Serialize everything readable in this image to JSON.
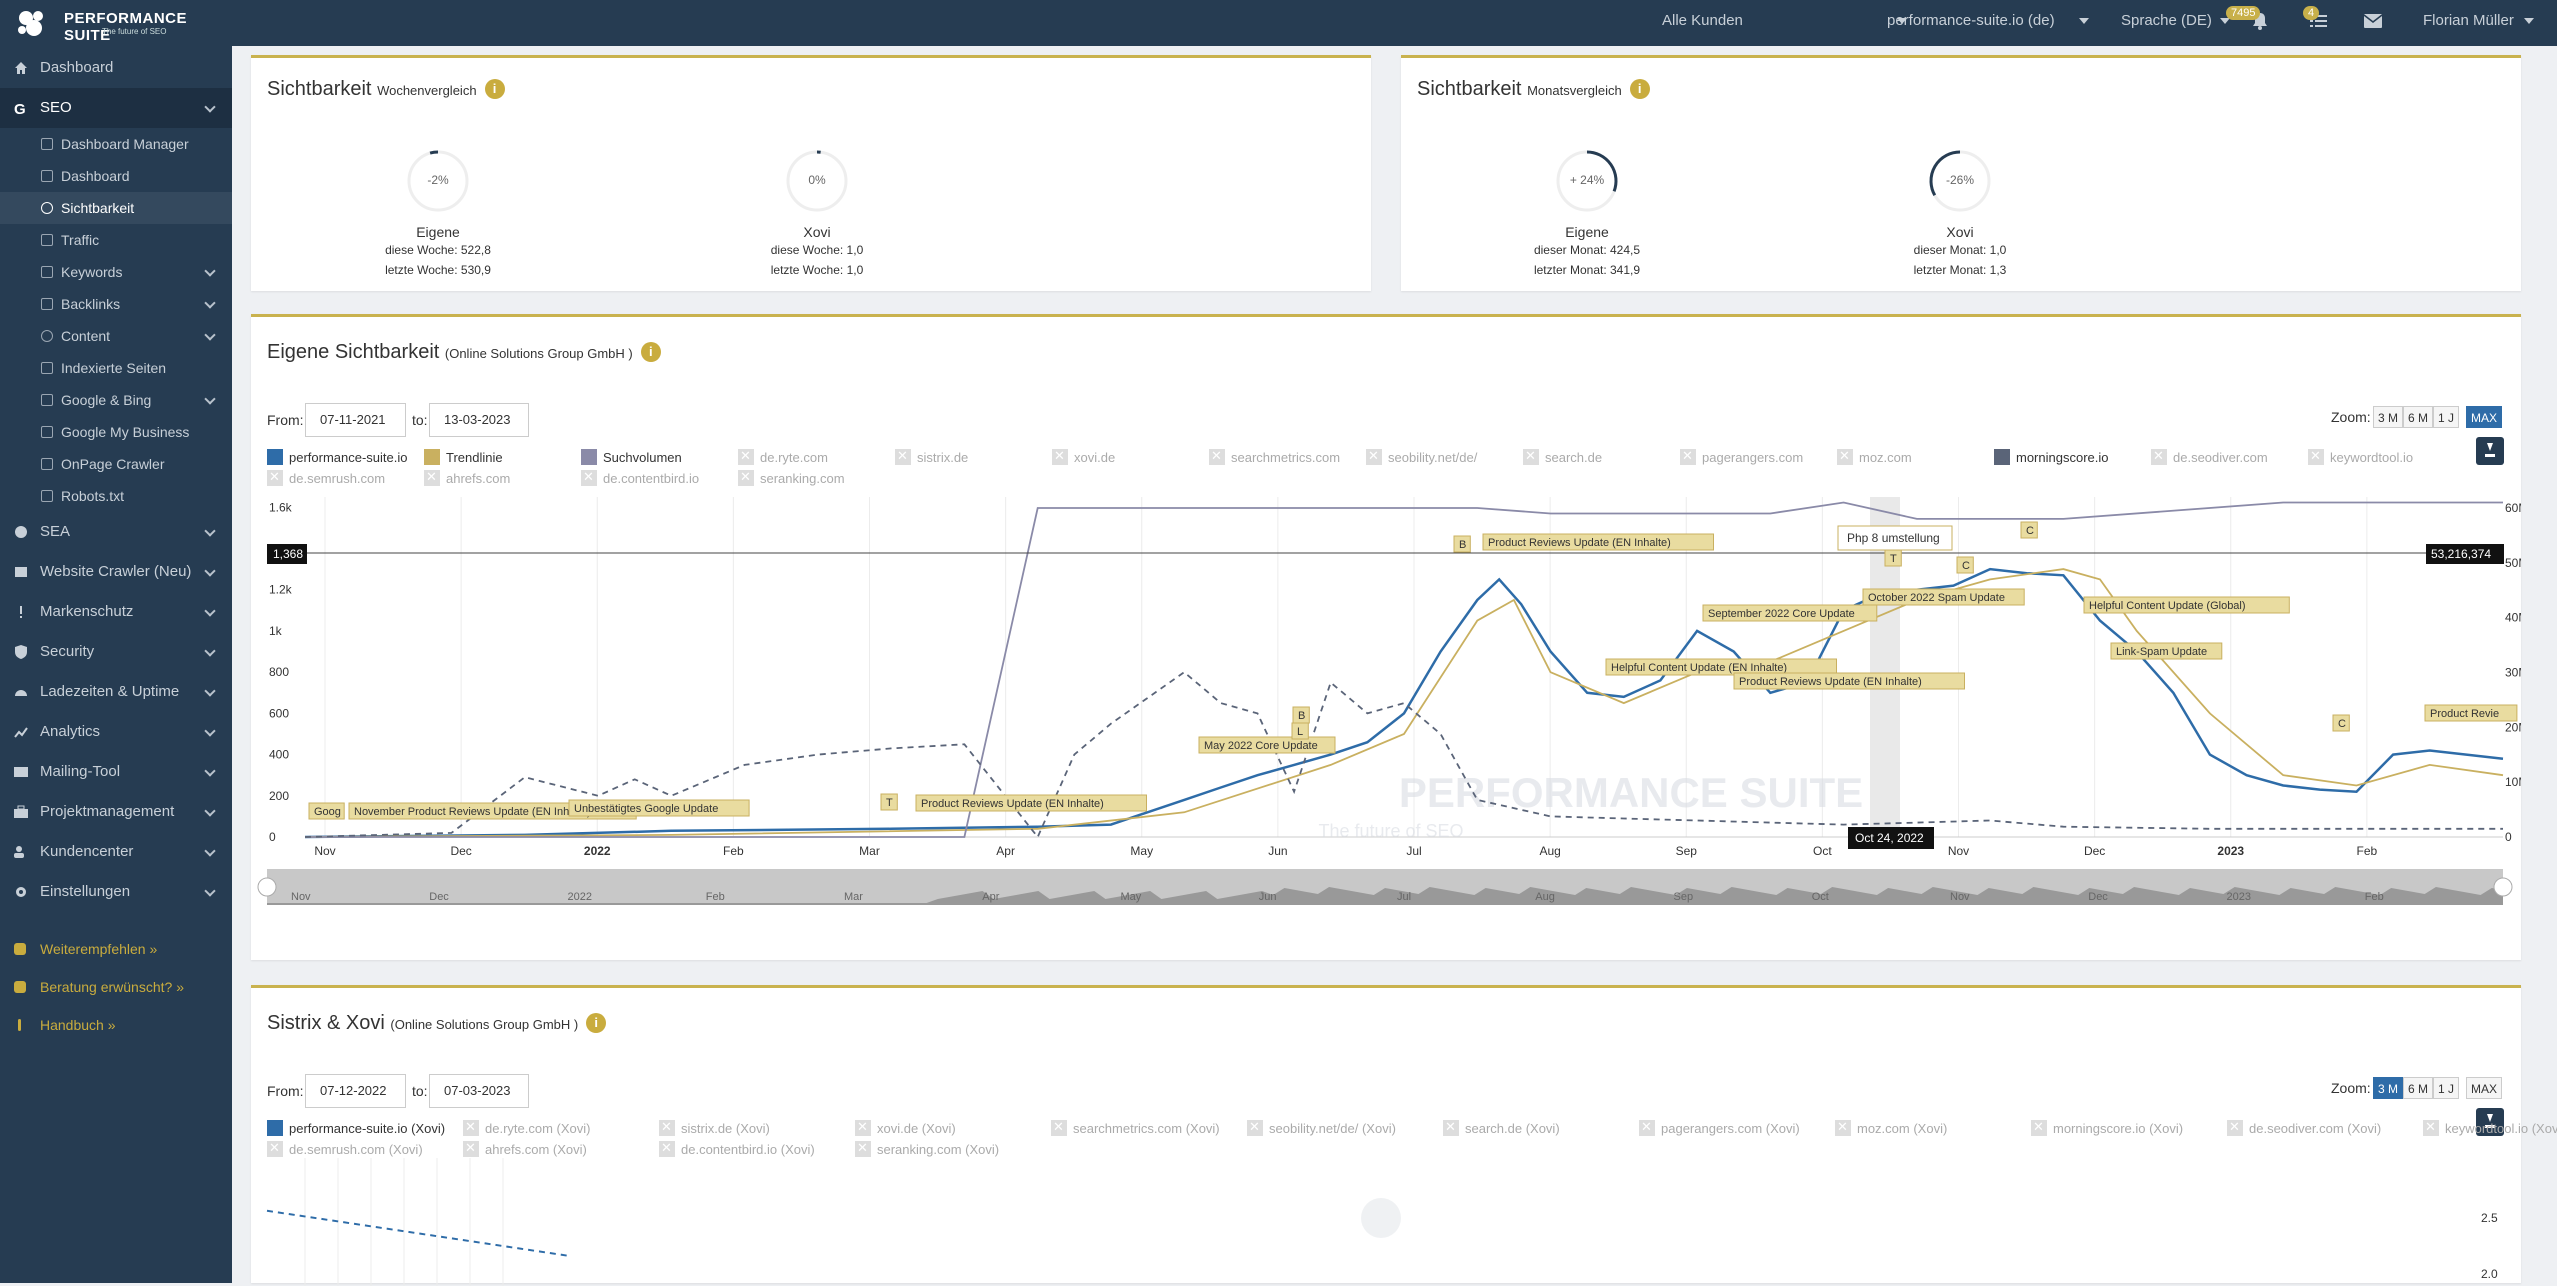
{
  "app": {
    "title": "PERFORMANCE SUITE",
    "tagline": "The future of SEO"
  },
  "topbar": {
    "customer_select": "Alle Kunden",
    "domain_select": "performance-suite.io (de)",
    "language_select": "Sprache (DE)",
    "notif_badge": "7495",
    "task_badge": "4",
    "user": "Florian Müller"
  },
  "sidebar": {
    "items": [
      {
        "label": "Dashboard"
      },
      {
        "label": "SEO"
      },
      {
        "label": "SEA"
      },
      {
        "label": "Website Crawler (Neu)"
      },
      {
        "label": "Markenschutz"
      },
      {
        "label": "Security"
      },
      {
        "label": "Ladezeiten & Uptime"
      },
      {
        "label": "Analytics"
      },
      {
        "label": "Mailing-Tool"
      },
      {
        "label": "Projektmanagement"
      },
      {
        "label": "Kundencenter"
      },
      {
        "label": "Einstellungen"
      }
    ],
    "seo_sub": [
      {
        "label": "Dashboard Manager"
      },
      {
        "label": "Dashboard"
      },
      {
        "label": "Sichtbarkeit"
      },
      {
        "label": "Traffic"
      },
      {
        "label": "Keywords"
      },
      {
        "label": "Backlinks"
      },
      {
        "label": "Content"
      },
      {
        "label": "Indexierte Seiten"
      },
      {
        "label": "Google & Bing"
      },
      {
        "label": "Google My Business"
      },
      {
        "label": "OnPage Crawler"
      },
      {
        "label": "Robots.txt"
      }
    ],
    "footer": [
      {
        "label": "Weiterempfehlen »"
      },
      {
        "label": "Beratung erwünscht? »"
      },
      {
        "label": "Handbuch »"
      }
    ]
  },
  "week_card": {
    "title": "Sichtbarkeit",
    "subtitle": "Wochenvergleich",
    "gauges": [
      {
        "pct": "-2%",
        "value": -2,
        "name": "Eigene",
        "line1": "diese Woche: 522,8",
        "line2": "letzte Woche: 530,9"
      },
      {
        "pct": "0%",
        "value": 0,
        "name": "Xovi",
        "line1": "diese Woche: 1,0",
        "line2": "letzte Woche: 1,0"
      }
    ]
  },
  "month_card": {
    "title": "Sichtbarkeit",
    "subtitle": "Monatsvergleich",
    "gauges": [
      {
        "pct": "+ 24%",
        "value": 24,
        "name": "Eigene",
        "line1": "dieser Monat: 424,5",
        "line2": "letzter Monat: 341,9"
      },
      {
        "pct": "-26%",
        "value": -26,
        "name": "Xovi",
        "line1": "dieser Monat: 1,0",
        "line2": "letzter Monat: 1,3"
      }
    ]
  },
  "chart1": {
    "title": "Eigene Sichtbarkeit",
    "subtitle": "(Online Solutions Group GmbH )",
    "from_label": "From:",
    "from": "07-11-2021",
    "to_label": "to:",
    "to": "13-03-2023",
    "zoom_label": "Zoom:",
    "zoom": [
      "3 M",
      "6 M",
      "1 J",
      "MAX"
    ],
    "zoom_active": "MAX",
    "legend": [
      {
        "label": "performance-suite.io",
        "color": "#2e6ca8",
        "on": true
      },
      {
        "label": "Trendlinie",
        "color": "#c9b060",
        "on": true
      },
      {
        "label": "Suchvolumen",
        "color": "#8a8aa8",
        "on": true
      },
      {
        "label": "de.ryte.com",
        "on": false
      },
      {
        "label": "sistrix.de",
        "on": false
      },
      {
        "label": "xovi.de",
        "on": false
      },
      {
        "label": "searchmetrics.com",
        "on": false
      },
      {
        "label": "seobility.net/de/",
        "on": false
      },
      {
        "label": "search.de",
        "on": false
      },
      {
        "label": "pagerangers.com",
        "on": false
      },
      {
        "label": "moz.com",
        "on": false
      },
      {
        "label": "morningscore.io",
        "color": "#5a6478",
        "on": true
      },
      {
        "label": "de.seodiver.com",
        "on": false
      },
      {
        "label": "keywordtool.io",
        "on": false
      },
      {
        "label": "de.semrush.com",
        "on": false
      },
      {
        "label": "ahrefs.com",
        "on": false
      },
      {
        "label": "de.contentbird.io",
        "on": false
      },
      {
        "label": "seranking.com",
        "on": false
      }
    ],
    "crosshair_left": "1,368",
    "crosshair_right": "53,216,374",
    "crosshair_date": "Oct 24, 2022",
    "tooltip": "Php 8 umstellung",
    "watermark": "PERFORMANCE SUITE",
    "watermark_sub": "The future of SEO",
    "navigator_labels": [
      "Nov",
      "Dec",
      "2022",
      "Feb",
      "Mar",
      "Apr",
      "May",
      "Jun",
      "Jul",
      "Aug",
      "Sep",
      "Oct",
      "Nov",
      "Dec",
      "2023",
      "Feb"
    ]
  },
  "chart_data": [
    {
      "type": "line",
      "title": "Eigene Sichtbarkeit",
      "x_ticks": [
        "Nov",
        "Dec",
        "2022",
        "Feb",
        "Mar",
        "Apr",
        "May",
        "Jun",
        "Jul",
        "Aug",
        "Sep",
        "Oct",
        "Nov",
        "Dec",
        "2023",
        "Feb"
      ],
      "y_left_ticks": [
        "0",
        "200",
        "400",
        "600",
        "800",
        "1k",
        "1.2k",
        "1.4k",
        "1.6k"
      ],
      "y_right_ticks": [
        "0",
        "10M",
        "20M",
        "30M",
        "40M",
        "50M",
        "60M"
      ],
      "ylim_left": [
        0,
        1650
      ],
      "ylim_right": [
        0,
        62000000
      ],
      "series": [
        {
          "name": "performance-suite.io",
          "color": "#2e6ca8",
          "axis": "left",
          "points": [
            [
              0,
              0
            ],
            [
              3,
              10
            ],
            [
              5,
              30
            ],
            [
              8,
              40
            ],
            [
              10,
              50
            ],
            [
              11,
              60
            ],
            [
              12,
              180
            ],
            [
              12.5,
              240
            ],
            [
              13,
              300
            ],
            [
              13.5,
              350
            ],
            [
              14,
              400
            ],
            [
              14.5,
              460
            ],
            [
              15,
              600
            ],
            [
              15.5,
              900
            ],
            [
              16,
              1150
            ],
            [
              16.3,
              1250
            ],
            [
              16.6,
              1130
            ],
            [
              17,
              900
            ],
            [
              17.5,
              700
            ],
            [
              18,
              680
            ],
            [
              18.5,
              760
            ],
            [
              19,
              1000
            ],
            [
              19.5,
              900
            ],
            [
              20,
              700
            ],
            [
              20.5,
              750
            ],
            [
              21,
              1100
            ],
            [
              21.5,
              1180
            ],
            [
              22,
              1200
            ],
            [
              22.5,
              1220
            ],
            [
              23,
              1300
            ],
            [
              23.5,
              1280
            ],
            [
              24,
              1270
            ],
            [
              24.5,
              1050
            ],
            [
              25,
              900
            ],
            [
              25.5,
              700
            ],
            [
              26,
              400
            ],
            [
              26.5,
              300
            ],
            [
              27,
              250
            ],
            [
              27.5,
              230
            ],
            [
              28,
              220
            ],
            [
              28.5,
              400
            ],
            [
              29,
              420
            ],
            [
              30,
              380
            ]
          ]
        },
        {
          "name": "Trendlinie",
          "color": "#c9b060",
          "axis": "left",
          "points": [
            [
              0,
              0
            ],
            [
              5,
              10
            ],
            [
              10,
              40
            ],
            [
              12,
              120
            ],
            [
              14,
              350
            ],
            [
              15,
              500
            ],
            [
              16,
              1050
            ],
            [
              16.5,
              1150
            ],
            [
              17,
              800
            ],
            [
              18,
              650
            ],
            [
              19,
              800
            ],
            [
              20,
              850
            ],
            [
              21,
              1000
            ],
            [
              22,
              1150
            ],
            [
              23,
              1250
            ],
            [
              24,
              1300
            ],
            [
              24.5,
              1250
            ],
            [
              25,
              1000
            ],
            [
              26,
              600
            ],
            [
              27,
              300
            ],
            [
              28,
              250
            ],
            [
              29,
              350
            ],
            [
              30,
              300
            ]
          ]
        },
        {
          "name": "Suchvolumen",
          "color": "#8a8aa8",
          "axis": "right",
          "points": [
            [
              0,
              0
            ],
            [
              9,
              0
            ],
            [
              10,
              60000000
            ],
            [
              16,
              60000000
            ],
            [
              17,
              59000000
            ],
            [
              20,
              59000000
            ],
            [
              21,
              61000000
            ],
            [
              22,
              58000000
            ],
            [
              24,
              58000000
            ],
            [
              27,
              61000000
            ],
            [
              30,
              61000000
            ]
          ]
        },
        {
          "name": "morningscore.io",
          "color": "#5a6478",
          "axis": "left",
          "dashed": true,
          "points": [
            [
              0,
              0
            ],
            [
              2,
              20
            ],
            [
              3,
              290
            ],
            [
              4,
              200
            ],
            [
              4.5,
              280
            ],
            [
              5,
              200
            ],
            [
              6,
              350
            ],
            [
              7,
              400
            ],
            [
              8,
              430
            ],
            [
              9,
              450
            ],
            [
              10,
              0
            ],
            [
              10.5,
              400
            ],
            [
              11,
              550
            ],
            [
              12,
              800
            ],
            [
              12.5,
              650
            ],
            [
              13,
              600
            ],
            [
              13.5,
              220
            ],
            [
              14,
              750
            ],
            [
              14.5,
              600
            ],
            [
              15,
              650
            ],
            [
              15.5,
              500
            ],
            [
              16,
              180
            ],
            [
              17,
              100
            ],
            [
              18,
              90
            ],
            [
              19,
              80
            ],
            [
              20,
              70
            ],
            [
              21,
              60
            ],
            [
              22,
              70
            ],
            [
              23,
              80
            ],
            [
              24,
              50
            ],
            [
              26,
              40
            ],
            [
              28,
              40
            ],
            [
              30,
              40
            ]
          ]
        }
      ],
      "annotations": [
        "Goog",
        "November Product Reviews Update (EN Inhalte)",
        "Unbestätigtes Google Update",
        "T",
        "Product Reviews Update (EN Inhalte)",
        "May 2022 Core Update",
        "B",
        "L",
        "B",
        "Product Reviews Update (EN Inhalte)",
        "Helpful Content Update (EN Inhalte)",
        "September 2022 Core Update",
        "Product Reviews Update (EN Inhalte)",
        "T",
        "October 2022 Spam Update",
        "C",
        "C",
        "Helpful Content Update (Global)",
        "Link-Spam Update",
        "C",
        "Product Revie"
      ]
    },
    {
      "type": "line",
      "title": "Sistrix & Xovi",
      "y_right_ticks": [
        "2.0",
        "2.5"
      ],
      "series": [
        {
          "name": "performance-suite.io (Xovi)",
          "color": "#2e6ca8",
          "dashed": true,
          "points": [
            [
              0,
              2.6
            ],
            [
              1,
              2.2
            ]
          ]
        }
      ]
    }
  ],
  "chart2": {
    "title": "Sistrix & Xovi",
    "subtitle": "(Online Solutions Group GmbH )",
    "from_label": "From:",
    "from": "07-12-2022",
    "to_label": "to:",
    "to": "07-03-2023",
    "zoom_label": "Zoom:",
    "zoom": [
      "3 M",
      "6 M",
      "1 J",
      "MAX"
    ],
    "zoom_active": "3 M",
    "legend": [
      {
        "label": "performance-suite.io (Xovi)",
        "color": "#2e6ca8",
        "on": true
      },
      {
        "label": "de.ryte.com (Xovi)",
        "on": false
      },
      {
        "label": "sistrix.de (Xovi)",
        "on": false
      },
      {
        "label": "xovi.de (Xovi)",
        "on": false
      },
      {
        "label": "searchmetrics.com (Xovi)",
        "on": false
      },
      {
        "label": "seobility.net/de/ (Xovi)",
        "on": false
      },
      {
        "label": "search.de (Xovi)",
        "on": false
      },
      {
        "label": "pagerangers.com (Xovi)",
        "on": false
      },
      {
        "label": "moz.com (Xovi)",
        "on": false
      },
      {
        "label": "morningscore.io (Xovi)",
        "on": false
      },
      {
        "label": "de.seodiver.com (Xovi)",
        "on": false
      },
      {
        "label": "keywordtool.io (Xovi)",
        "on": false
      },
      {
        "label": "de.semrush.com (Xovi)",
        "on": false
      },
      {
        "label": "ahrefs.com (Xovi)",
        "on": false
      },
      {
        "label": "de.contentbird.io (Xovi)",
        "on": false
      },
      {
        "label": "seranking.com (Xovi)",
        "on": false
      }
    ]
  }
}
